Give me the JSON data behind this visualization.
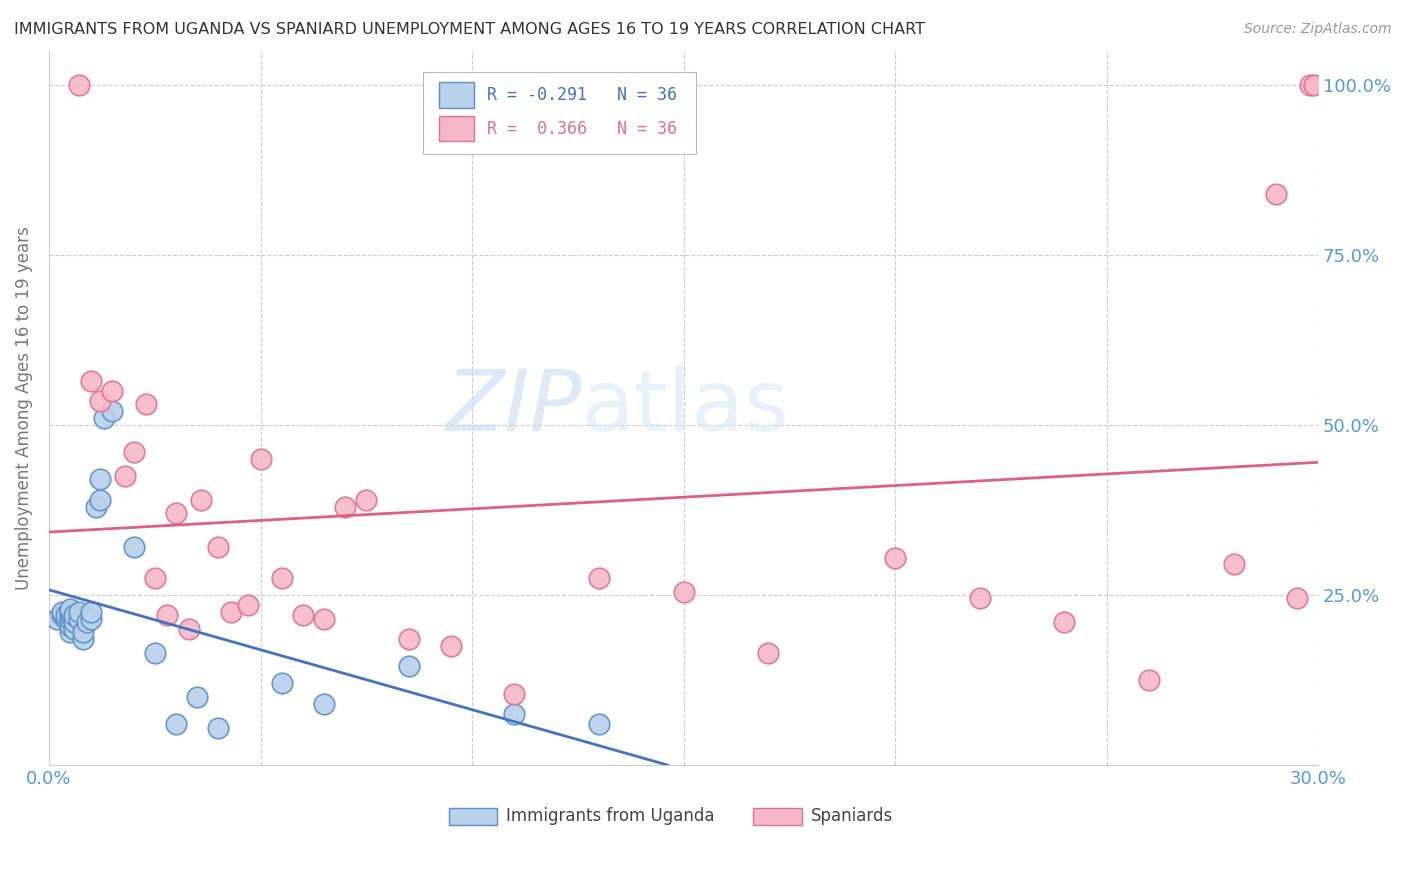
{
  "title": "IMMIGRANTS FROM UGANDA VS SPANIARD UNEMPLOYMENT AMONG AGES 16 TO 19 YEARS CORRELATION CHART",
  "source": "Source: ZipAtlas.com",
  "ylabel": "Unemployment Among Ages 16 to 19 years",
  "xlim": [
    0.0,
    0.3
  ],
  "ylim": [
    0.0,
    1.05
  ],
  "r_uganda": -0.291,
  "r_spaniard": 0.366,
  "n_uganda": 36,
  "n_spaniard": 36,
  "uganda_face_color": "#b8d0e8",
  "uganda_edge_color": "#5b8fc9",
  "spaniard_face_color": "#f5b8c8",
  "spaniard_edge_color": "#e07090",
  "uganda_line_color": "#4472c4",
  "spaniard_line_color": "#e06080",
  "grid_color": "#cccccc",
  "tick_color": "#5599dd",
  "ylabel_color": "#777777",
  "title_color": "#333333",
  "source_color": "#999999",
  "watermark_color": "#d0e4f4",
  "uganda_x": [
    0.002,
    0.003,
    0.003,
    0.004,
    0.004,
    0.005,
    0.005,
    0.005,
    0.005,
    0.005,
    0.005,
    0.006,
    0.006,
    0.006,
    0.007,
    0.007,
    0.008,
    0.008,
    0.009,
    0.01,
    0.01,
    0.011,
    0.012,
    0.012,
    0.013,
    0.015,
    0.02,
    0.025,
    0.03,
    0.035,
    0.04,
    0.055,
    0.065,
    0.085,
    0.11,
    0.13
  ],
  "uganda_y": [
    0.215,
    0.22,
    0.225,
    0.215,
    0.22,
    0.195,
    0.205,
    0.215,
    0.22,
    0.225,
    0.23,
    0.2,
    0.21,
    0.22,
    0.215,
    0.225,
    0.185,
    0.195,
    0.21,
    0.215,
    0.225,
    0.38,
    0.39,
    0.42,
    0.51,
    0.52,
    0.32,
    0.165,
    0.06,
    0.1,
    0.055,
    0.12,
    0.09,
    0.145,
    0.075,
    0.06
  ],
  "spaniard_x": [
    0.007,
    0.01,
    0.012,
    0.015,
    0.018,
    0.02,
    0.023,
    0.025,
    0.028,
    0.03,
    0.033,
    0.036,
    0.04,
    0.043,
    0.047,
    0.05,
    0.055,
    0.06,
    0.065,
    0.07,
    0.075,
    0.085,
    0.095,
    0.11,
    0.13,
    0.15,
    0.17,
    0.2,
    0.22,
    0.24,
    0.26,
    0.28,
    0.29,
    0.295,
    0.298,
    0.299
  ],
  "spaniard_y": [
    1.0,
    0.565,
    0.535,
    0.55,
    0.425,
    0.46,
    0.53,
    0.275,
    0.22,
    0.37,
    0.2,
    0.39,
    0.32,
    0.225,
    0.235,
    0.45,
    0.275,
    0.22,
    0.215,
    0.38,
    0.39,
    0.185,
    0.175,
    0.105,
    0.275,
    0.255,
    0.165,
    0.305,
    0.245,
    0.21,
    0.125,
    0.295,
    0.84,
    0.245,
    1.0,
    1.0
  ]
}
